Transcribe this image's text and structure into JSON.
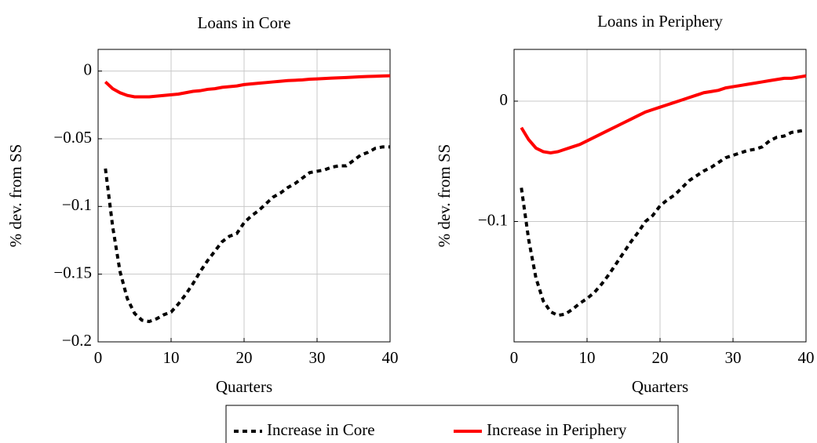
{
  "chart_data": [
    {
      "type": "line",
      "title": "Loans in Core",
      "xlabel": "Quarters",
      "ylabel": "% dev. from SS",
      "x": [
        1,
        2,
        3,
        4,
        5,
        6,
        7,
        8,
        9,
        10,
        11,
        12,
        13,
        14,
        15,
        16,
        17,
        18,
        19,
        20,
        21,
        22,
        23,
        24,
        25,
        26,
        27,
        28,
        29,
        30,
        31,
        32,
        33,
        34,
        35,
        36,
        37,
        38,
        39,
        40
      ],
      "series": [
        {
          "name": "Increase in Core",
          "color": "#000000",
          "dashed": true,
          "values": [
            -0.072,
            -0.115,
            -0.148,
            -0.168,
            -0.179,
            -0.184,
            -0.185,
            -0.183,
            -0.18,
            -0.178,
            -0.172,
            -0.165,
            -0.157,
            -0.148,
            -0.14,
            -0.133,
            -0.126,
            -0.122,
            -0.12,
            -0.112,
            -0.107,
            -0.103,
            -0.098,
            -0.093,
            -0.09,
            -0.086,
            -0.083,
            -0.079,
            -0.075,
            -0.074,
            -0.073,
            -0.071,
            -0.07,
            -0.07,
            -0.066,
            -0.062,
            -0.06,
            -0.057,
            -0.056,
            -0.056
          ]
        },
        {
          "name": "Increase in Periphery",
          "color": "#ff0000",
          "dashed": false,
          "values": [
            -0.008,
            -0.013,
            -0.016,
            -0.018,
            -0.019,
            -0.019,
            -0.019,
            -0.0185,
            -0.018,
            -0.0175,
            -0.017,
            -0.016,
            -0.015,
            -0.0145,
            -0.0135,
            -0.013,
            -0.012,
            -0.0115,
            -0.011,
            -0.01,
            -0.0095,
            -0.009,
            -0.0085,
            -0.008,
            -0.0075,
            -0.007,
            -0.0068,
            -0.0065,
            -0.006,
            -0.0058,
            -0.0055,
            -0.0052,
            -0.005,
            -0.0048,
            -0.0045,
            -0.0042,
            -0.004,
            -0.0038,
            -0.0036,
            -0.0035
          ]
        }
      ],
      "xlim": [
        0,
        40
      ],
      "xticks": [
        0,
        10,
        20,
        30,
        40
      ],
      "ylim": [
        -0.2,
        0.016
      ],
      "yticks": [
        {
          "value": -0.2,
          "label": "−0.2"
        },
        {
          "value": -0.15,
          "label": "−0.15"
        },
        {
          "value": -0.1,
          "label": "−0.1"
        },
        {
          "value": -0.05,
          "label": "−0.05"
        },
        0
      ],
      "grid": true
    },
    {
      "type": "line",
      "title": "Loans in Periphery",
      "xlabel": "Quarters",
      "ylabel": "% dev. from SS",
      "x": [
        1,
        2,
        3,
        4,
        5,
        6,
        7,
        8,
        9,
        10,
        11,
        12,
        13,
        14,
        15,
        16,
        17,
        18,
        19,
        20,
        21,
        22,
        23,
        24,
        25,
        26,
        27,
        28,
        29,
        30,
        31,
        32,
        33,
        34,
        35,
        36,
        37,
        38,
        39,
        40
      ],
      "series": [
        {
          "name": "Increase in Core",
          "color": "#000000",
          "dashed": true,
          "values": [
            -0.072,
            -0.115,
            -0.147,
            -0.166,
            -0.175,
            -0.178,
            -0.177,
            -0.173,
            -0.168,
            -0.164,
            -0.159,
            -0.152,
            -0.144,
            -0.135,
            -0.126,
            -0.117,
            -0.109,
            -0.1,
            -0.095,
            -0.087,
            -0.082,
            -0.078,
            -0.072,
            -0.066,
            -0.062,
            -0.058,
            -0.055,
            -0.051,
            -0.047,
            -0.045,
            -0.043,
            -0.041,
            -0.04,
            -0.038,
            -0.033,
            -0.03,
            -0.029,
            -0.026,
            -0.025,
            -0.024
          ]
        },
        {
          "name": "Increase in Periphery",
          "color": "#ff0000",
          "dashed": false,
          "values": [
            -0.022,
            -0.032,
            -0.039,
            -0.042,
            -0.043,
            -0.042,
            -0.04,
            -0.038,
            -0.036,
            -0.033,
            -0.03,
            -0.027,
            -0.024,
            -0.021,
            -0.018,
            -0.015,
            -0.012,
            -0.009,
            -0.007,
            -0.005,
            -0.003,
            -0.001,
            0.001,
            0.003,
            0.005,
            0.007,
            0.008,
            0.009,
            0.011,
            0.012,
            0.013,
            0.014,
            0.015,
            0.016,
            0.017,
            0.018,
            0.019,
            0.019,
            0.02,
            0.021
          ]
        }
      ],
      "xlim": [
        0,
        40
      ],
      "xticks": [
        0,
        10,
        20,
        30,
        40
      ],
      "ylim": [
        -0.2,
        0.043
      ],
      "yticks": [
        {
          "value": -0.1,
          "label": "−0.1"
        },
        0
      ],
      "grid": true
    }
  ]
}
